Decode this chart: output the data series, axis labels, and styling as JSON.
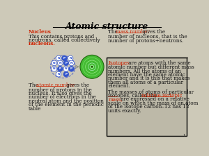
{
  "title": "Atomic structure",
  "bg_color": "#cdc9b8",
  "right_box_bg": "#bdb9a8",
  "nucleus_label": "Nucleus",
  "nucleus_text1": "This contains protons and",
  "nucleus_text2": "neutrons, called collectively",
  "nucleons_word": "nucleons.",
  "mass_number_link": "mass number",
  "atomic_number_link": "atomic number",
  "isotopes_link": "Isotopes",
  "rel_iso_link1": "relative isotopic",
  "rel_iso_link2": "mass",
  "link_color": "#cc2200",
  "nucleus_label_color": "#cc2200",
  "proton_color": "#3355cc",
  "neutron_color": "#ffffff",
  "particle_border": "#3355cc",
  "text_color": "#111111",
  "title_color": "#000000",
  "page_num": "1"
}
